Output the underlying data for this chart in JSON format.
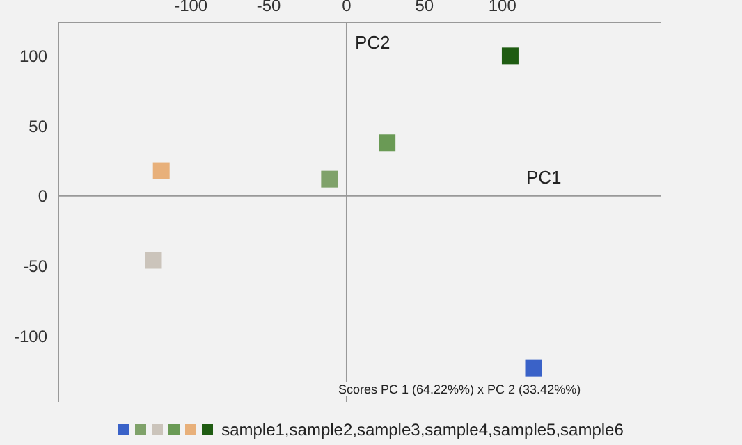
{
  "chart_data": {
    "type": "scatter",
    "title": "Scores PC 1 (64.22%%) x PC 2 (33.42%%)",
    "xlabel": "PC1",
    "ylabel": "PC2",
    "x": [
      120,
      -11,
      -124,
      26,
      -119,
      105
    ],
    "series": [
      {
        "name": "sample1,sample2,sample3,sample4,sample5,sample6",
        "colors": [
          "#3a62c8",
          "#7fa26a",
          "#cbc4bb",
          "#6a9a55",
          "#e8b07a",
          "#1f5c12"
        ],
        "values": [
          -123,
          12,
          -46,
          38,
          18,
          100
        ]
      }
    ],
    "xlim": [
      -185,
      202
    ],
    "xticks": [
      -100,
      -50,
      0,
      50,
      100
    ],
    "ylim": [
      -147,
      124
    ],
    "yticks": [
      -100,
      -50,
      0,
      50,
      100
    ],
    "marker": "square",
    "legend": "bottom"
  }
}
